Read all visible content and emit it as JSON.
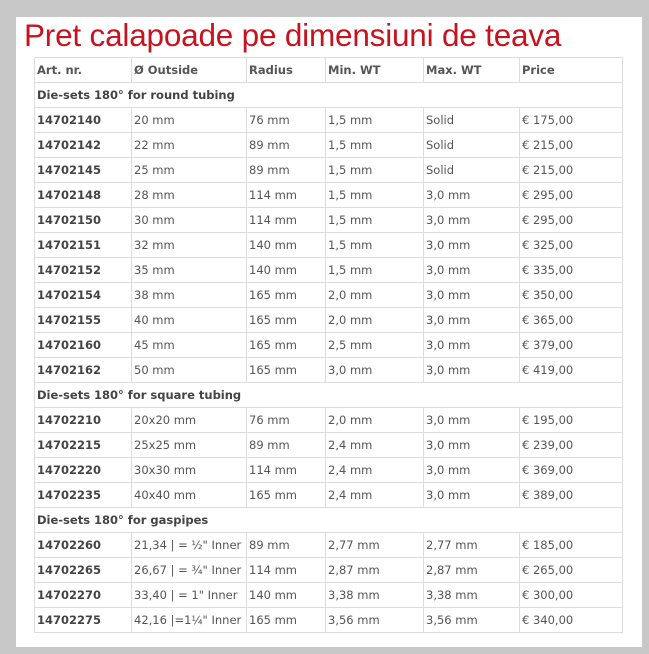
{
  "title": "Pret calapoade pe dimensiuni de teava",
  "headers": [
    "Art. nr.",
    "Ø Outside",
    "Radius",
    "Min. WT",
    "Max. WT",
    "Price"
  ],
  "sections": [
    {
      "label": "Die-sets 180° for round tubing",
      "rows": [
        [
          "14702140",
          "20 mm",
          "76 mm",
          "1,5 mm",
          "Solid",
          "€ 175,00"
        ],
        [
          "14702142",
          "22 mm",
          "89 mm",
          "1,5 mm",
          "Solid",
          "€ 215,00"
        ],
        [
          "14702145",
          "25 mm",
          "89 mm",
          "1,5 mm",
          "Solid",
          "€ 215,00"
        ],
        [
          "14702148",
          "28 mm",
          "114 mm",
          "1,5 mm",
          "3,0 mm",
          "€ 295,00"
        ],
        [
          "14702150",
          "30 mm",
          "114 mm",
          "1,5 mm",
          "3,0 mm",
          "€ 295,00"
        ],
        [
          "14702151",
          "32 mm",
          "140 mm",
          "1,5 mm",
          "3,0 mm",
          "€ 325,00"
        ],
        [
          "14702152",
          "35 mm",
          "140 mm",
          "1,5 mm",
          "3,0 mm",
          "€ 335,00"
        ],
        [
          "14702154",
          "38 mm",
          "165 mm",
          "2,0 mm",
          "3,0 mm",
          "€ 350,00"
        ],
        [
          "14702155",
          "40 mm",
          "165 mm",
          "2,0 mm",
          "3,0 mm",
          "€ 365,00"
        ],
        [
          "14702160",
          "45 mm",
          "165 mm",
          "2,5 mm",
          "3,0 mm",
          "€ 379,00"
        ],
        [
          "14702162",
          "50 mm",
          "165 mm",
          "3,0 mm",
          "3,0 mm",
          "€ 419,00"
        ]
      ]
    },
    {
      "label": "Die-sets 180° for square tubing",
      "rows": [
        [
          "14702210",
          "20x20 mm",
          "76 mm",
          "2,0 mm",
          "3,0 mm",
          "€ 195,00"
        ],
        [
          "14702215",
          "25x25 mm",
          "89 mm",
          "2,4 mm",
          "3,0 mm",
          "€ 239,00"
        ],
        [
          "14702220",
          "30x30 mm",
          "114 mm",
          "2,4 mm",
          "3,0 mm",
          "€ 369,00"
        ],
        [
          "14702235",
          "40x40 mm",
          "165 mm",
          "2,4 mm",
          "3,0 mm",
          "€ 389,00"
        ]
      ]
    },
    {
      "label": "Die-sets 180° for gaspipes",
      "rows": [
        [
          "14702260",
          "21,34 | = ½\" Inner",
          "89 mm",
          "2,77 mm",
          "2,77 mm",
          "€ 185,00"
        ],
        [
          "14702265",
          "26,67 | = ¾\" Inner",
          "114 mm",
          "2,87 mm",
          "2,87 mm",
          "€ 265,00"
        ],
        [
          "14702270",
          "33,40 | = 1\" Inner",
          "140 mm",
          "3,38 mm",
          "3,38 mm",
          "€ 300,00"
        ],
        [
          "14702275",
          "42,16 |=1¼\" Inner",
          "165 mm",
          "3,56 mm",
          "3,56 mm",
          "€ 340,00"
        ]
      ]
    }
  ]
}
